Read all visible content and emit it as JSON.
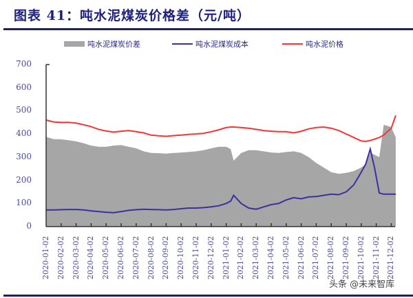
{
  "header": {
    "title": "图表 41：吨水泥煤炭价格差（元/吨）"
  },
  "legend": {
    "items": [
      {
        "label": "吨水泥煤炭价差",
        "type": "area",
        "color": "#a6a6a6"
      },
      {
        "label": "吨水泥煤炭成本",
        "type": "line",
        "color": "#3a2f9e"
      },
      {
        "label": "吨水泥价格",
        "type": "line",
        "color": "#ff3030"
      }
    ]
  },
  "y_axis": {
    "ticks": [
      "0",
      "100",
      "200",
      "300",
      "400",
      "500",
      "600",
      "700"
    ]
  },
  "x_axis": {
    "ticks": [
      "2020-01-02",
      "2020-02-02",
      "2020-03-02",
      "2020-04-02",
      "2020-05-02",
      "2020-06-02",
      "2020-07-02",
      "2020-08-02",
      "2020-09-02",
      "2020-10-02",
      "2020-11-02",
      "2020-12-02",
      "2021-01-02",
      "2021-02-02",
      "2021-03-02",
      "2021-04-02",
      "2021-05-02",
      "2021-06-02",
      "2021-07-02",
      "2021-08-02",
      "2021-09-02",
      "2021-10-02",
      "2021-11-02",
      "2021-12-02"
    ]
  },
  "watermark": "头条 @未来智库",
  "chart_data": {
    "type": "line",
    "title": "图表 41：吨水泥煤炭价格差（元/吨）",
    "xlabel": "",
    "ylabel": "元/吨",
    "ylim": [
      0,
      700
    ],
    "grid": false,
    "legend_position": "top",
    "x": [
      0,
      0.5,
      1,
      1.5,
      2,
      2.5,
      3,
      3.5,
      4,
      4.5,
      5,
      5.5,
      6,
      6.5,
      7,
      7.5,
      8,
      8.5,
      9,
      9.5,
      10,
      10.5,
      11,
      11.5,
      12,
      12.3,
      12.5,
      13,
      13.5,
      14,
      14.5,
      15,
      15.5,
      16,
      16.5,
      17,
      17.5,
      18,
      18.5,
      19,
      19.5,
      20,
      20.5,
      21,
      21.3,
      21.6,
      21.9,
      22.2,
      22.5,
      23,
      23.3
    ],
    "x_tick_labels": [
      "2020-01-02",
      "2020-02-02",
      "2020-03-02",
      "2020-04-02",
      "2020-05-02",
      "2020-06-02",
      "2020-07-02",
      "2020-08-02",
      "2020-09-02",
      "2020-10-02",
      "2020-11-02",
      "2020-12-02",
      "2021-01-02",
      "2021-02-02",
      "2021-03-02",
      "2021-04-02",
      "2021-05-02",
      "2021-06-02",
      "2021-07-02",
      "2021-08-02",
      "2021-09-02",
      "2021-10-02",
      "2021-11-02",
      "2021-12-02"
    ],
    "series": [
      {
        "name": "吨水泥价格",
        "type": "line",
        "color": "#ff3030",
        "values": [
          460,
          452,
          450,
          450,
          447,
          440,
          432,
          420,
          413,
          408,
          412,
          415,
          410,
          405,
          395,
          392,
          390,
          393,
          395,
          398,
          400,
          403,
          410,
          418,
          428,
          430,
          430,
          428,
          425,
          420,
          415,
          412,
          410,
          410,
          405,
          412,
          422,
          428,
          430,
          425,
          415,
          400,
          385,
          370,
          368,
          372,
          378,
          385,
          395,
          425,
          480
        ]
      },
      {
        "name": "吨水泥煤炭成本",
        "type": "line",
        "color": "#3a2f9e",
        "values": [
          72,
          72,
          73,
          74,
          74,
          72,
          68,
          65,
          62,
          60,
          65,
          70,
          73,
          75,
          74,
          73,
          72,
          74,
          77,
          80,
          80,
          82,
          85,
          90,
          100,
          110,
          135,
          100,
          80,
          75,
          85,
          95,
          100,
          115,
          125,
          120,
          128,
          130,
          135,
          140,
          138,
          150,
          180,
          235,
          270,
          335,
          250,
          145,
          140,
          140,
          140
        ]
      },
      {
        "name": "吨水泥煤炭价差",
        "type": "area",
        "color": "#a6a6a6",
        "values": [
          388,
          378,
          377,
          373,
          368,
          360,
          350,
          345,
          345,
          350,
          352,
          345,
          338,
          325,
          318,
          317,
          315,
          318,
          320,
          322,
          325,
          330,
          338,
          345,
          345,
          335,
          285,
          318,
          330,
          330,
          325,
          320,
          318,
          322,
          325,
          318,
          300,
          275,
          255,
          235,
          228,
          232,
          240,
          255,
          270,
          320,
          310,
          300,
          440,
          430,
          385
        ]
      }
    ]
  }
}
